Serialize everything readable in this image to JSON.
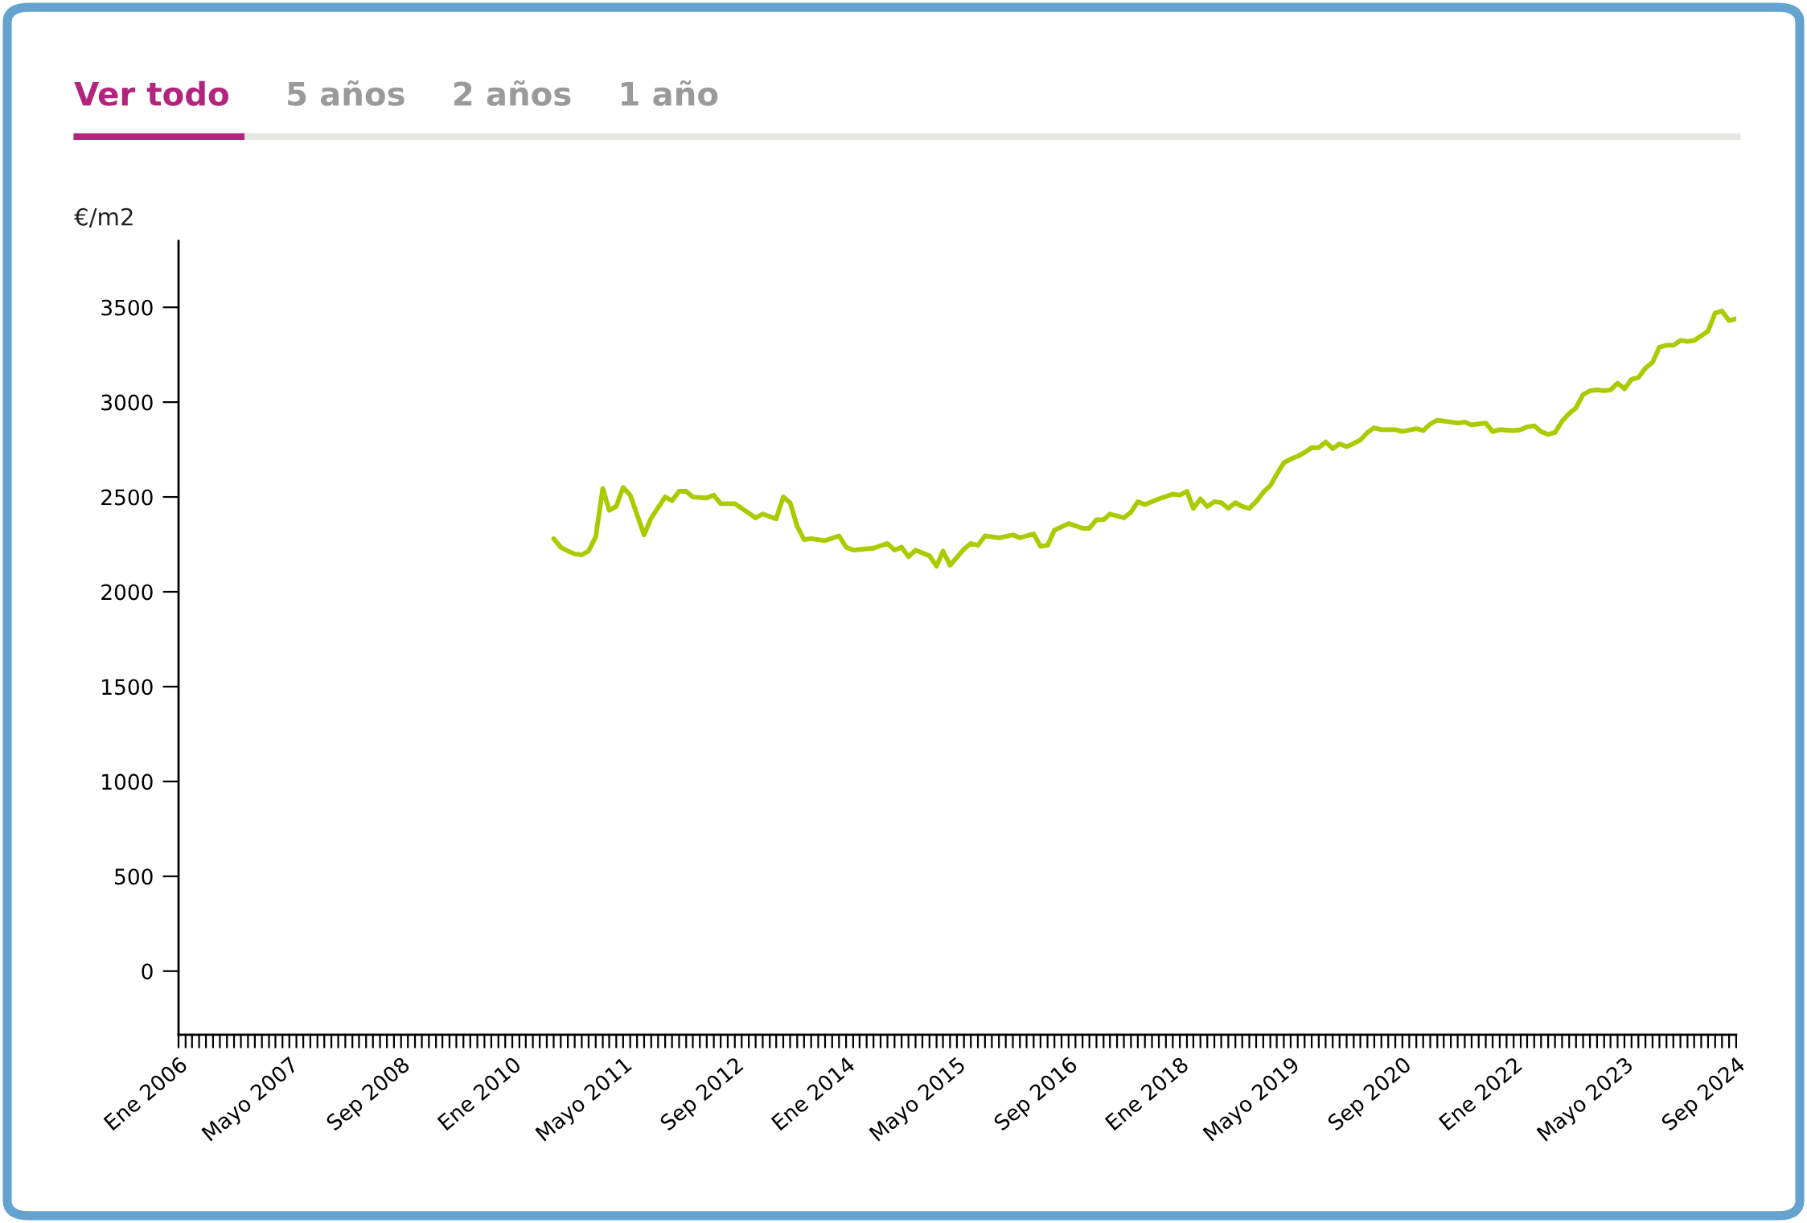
{
  "chart_data": {
    "type": "line",
    "ylabel": "€/m2",
    "annotations": [
      "Ver todo",
      "5 años",
      "2 años",
      "1 año"
    ],
    "series": [
      {
        "color": "#a8cc00",
        "x": [
          "2010-07",
          "2010-08",
          "2010-09",
          "2010-10",
          "2010-11",
          "2010-12",
          "2011-01",
          "2011-02",
          "2011-03",
          "2011-04",
          "2011-05",
          "2011-06",
          "2011-08",
          "2011-09",
          "2011-11",
          "2011-12",
          "2012-01",
          "2012-02",
          "2012-03",
          "2012-05",
          "2012-06",
          "2012-07",
          "2012-09",
          "2012-11",
          "2012-12",
          "2013-01",
          "2013-03",
          "2013-04",
          "2013-05",
          "2013-06",
          "2013-07",
          "2013-08",
          "2013-10",
          "2013-12",
          "2014-01",
          "2014-02",
          "2014-05",
          "2014-07",
          "2014-08",
          "2014-09",
          "2014-10",
          "2014-11",
          "2015-01",
          "2015-02",
          "2015-03",
          "2015-04",
          "2015-06",
          "2015-07",
          "2015-08",
          "2015-09",
          "2015-11",
          "2016-01",
          "2016-02",
          "2016-04",
          "2016-05",
          "2016-06",
          "2016-07",
          "2016-09",
          "2016-11",
          "2016-12",
          "2017-01",
          "2017-02",
          "2017-03",
          "2017-05",
          "2017-06",
          "2017-07",
          "2017-08",
          "2017-10",
          "2017-12",
          "2018-01",
          "2018-02",
          "2018-03",
          "2018-04",
          "2018-05",
          "2018-06",
          "2018-07",
          "2018-08",
          "2018-09",
          "2018-10",
          "2018-11",
          "2018-12",
          "2019-01",
          "2019-02",
          "2019-03",
          "2019-04",
          "2019-05",
          "2019-06",
          "2019-07",
          "2019-08",
          "2019-09",
          "2019-10",
          "2019-11",
          "2019-12",
          "2020-01",
          "2020-03",
          "2020-04",
          "2020-05",
          "2020-06",
          "2020-08",
          "2020-09",
          "2020-11",
          "2020-12",
          "2021-01",
          "2021-02",
          "2021-04",
          "2021-05",
          "2021-06",
          "2021-07",
          "2021-08",
          "2021-09",
          "2021-10",
          "2021-11",
          "2022-01",
          "2022-02",
          "2022-03",
          "2022-04",
          "2022-05",
          "2022-06",
          "2022-07",
          "2022-08",
          "2022-09",
          "2022-10",
          "2022-11",
          "2022-12",
          "2023-01",
          "2023-02",
          "2023-03",
          "2023-04",
          "2023-05",
          "2023-06",
          "2023-07",
          "2023-08",
          "2023-09",
          "2023-10",
          "2023-11",
          "2023-12",
          "2024-01",
          "2024-02",
          "2024-03",
          "2024-04",
          "2024-05",
          "2024-06",
          "2024-07",
          "2024-08",
          "2024-09"
        ],
        "values": [
          2280,
          2235,
          2215,
          2200,
          2195,
          2215,
          2290,
          2545,
          2430,
          2450,
          2550,
          2510,
          2300,
          2390,
          2500,
          2480,
          2530,
          2530,
          2500,
          2495,
          2510,
          2465,
          2465,
          2415,
          2390,
          2410,
          2385,
          2500,
          2470,
          2345,
          2275,
          2280,
          2270,
          2295,
          2235,
          2220,
          2230,
          2255,
          2220,
          2235,
          2185,
          2220,
          2190,
          2135,
          2215,
          2140,
          2225,
          2255,
          2245,
          2295,
          2285,
          2300,
          2285,
          2305,
          2240,
          2245,
          2325,
          2360,
          2335,
          2335,
          2380,
          2380,
          2410,
          2390,
          2420,
          2475,
          2460,
          2490,
          2515,
          2510,
          2530,
          2440,
          2490,
          2450,
          2475,
          2470,
          2440,
          2470,
          2450,
          2440,
          2475,
          2525,
          2560,
          2620,
          2680,
          2700,
          2715,
          2735,
          2760,
          2760,
          2790,
          2755,
          2780,
          2765,
          2800,
          2840,
          2865,
          2855,
          2855,
          2845,
          2860,
          2850,
          2885,
          2905,
          2895,
          2890,
          2895,
          2880,
          2885,
          2890,
          2845,
          2855,
          2850,
          2855,
          2870,
          2875,
          2845,
          2830,
          2840,
          2900,
          2940,
          2970,
          3040,
          3060,
          3065,
          3060,
          3065,
          3100,
          3070,
          3120,
          3130,
          3180,
          3210,
          3290,
          3300,
          3300,
          3325,
          3320,
          3325,
          3350,
          3375,
          3470,
          3480,
          3430,
          3440
        ]
      }
    ],
    "ylim": [
      -335,
      3850
    ],
    "yticks": [
      0,
      500,
      1000,
      1500,
      2000,
      2500,
      3000,
      3500
    ],
    "xlim": [
      "2006-01",
      "2024-09"
    ],
    "xticks": [
      {
        "value": "2006-01",
        "label": "Ene 2006"
      },
      {
        "value": "2007-05",
        "label": "Mayo 2007"
      },
      {
        "value": "2008-09",
        "label": "Sep 2008"
      },
      {
        "value": "2010-01",
        "label": "Ene 2010"
      },
      {
        "value": "2011-05",
        "label": "Mayo 2011"
      },
      {
        "value": "2012-09",
        "label": "Sep 2012"
      },
      {
        "value": "2014-01",
        "label": "Ene 2014"
      },
      {
        "value": "2015-05",
        "label": "Mayo 2015"
      },
      {
        "value": "2016-09",
        "label": "Sep 2016"
      },
      {
        "value": "2018-01",
        "label": "Ene 2018"
      },
      {
        "value": "2019-05",
        "label": "Mayo 2019"
      },
      {
        "value": "2020-09",
        "label": "Sep 2020"
      },
      {
        "value": "2022-01",
        "label": "Ene 2022"
      },
      {
        "value": "2023-05",
        "label": "Mayo 2023"
      },
      {
        "value": "2024-09",
        "label": "Sep 2024"
      }
    ],
    "grid": false,
    "marker": "none",
    "line_style": "solid"
  }
}
